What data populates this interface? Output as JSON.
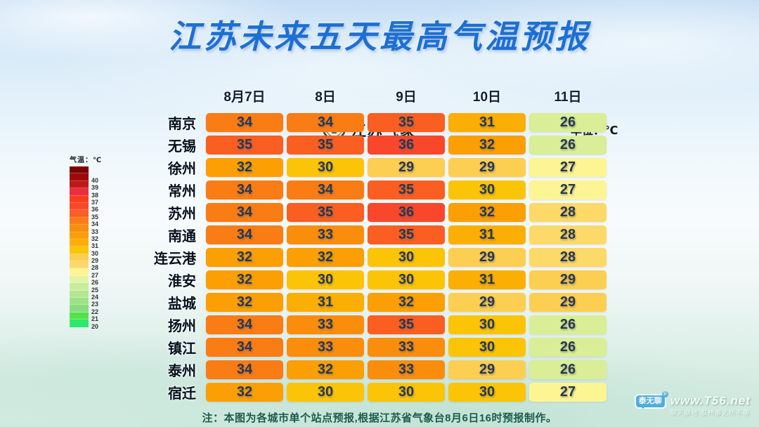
{
  "title": "江苏未来五天最高气温预报",
  "unit_label": "单位：℃",
  "logo": {
    "text": "江苏气象"
  },
  "legend": {
    "title": "气温：℃",
    "ticks": [
      40,
      39,
      38,
      37,
      36,
      35,
      34,
      33,
      32,
      31,
      30,
      29,
      28,
      27,
      26,
      25,
      24,
      23,
      22,
      21,
      20
    ],
    "colors": [
      "#7e0101",
      "#9e0a0a",
      "#bf1717",
      "#ec2d3a",
      "#fb3c16",
      "#f9472b",
      "#fa5e20",
      "#fa7c14",
      "#fa8d0c",
      "#fb9f04",
      "#fbae03",
      "#fcc407",
      "#fcce52",
      "#fcd968",
      "#fdf593",
      "#e3f3a6",
      "#c9ec9c",
      "#b3e793",
      "#9ce287",
      "#85de7b",
      "#52e348",
      "#2de96d"
    ]
  },
  "temp_colors": {
    "36": "#f9472b",
    "35": "#fa5e20",
    "34": "#fa7c14",
    "33": "#fa8d0c",
    "32": "#fb9f04",
    "31": "#fbae03",
    "30": "#fcc407",
    "29": "#fcce52",
    "28": "#fcd968",
    "27": "#fdf593",
    "26": "#d9ee96"
  },
  "table": {
    "date_headers": [
      "8月7日",
      "8日",
      "9日",
      "10日",
      "11日"
    ],
    "rows": [
      {
        "city": "南京",
        "temps": [
          34,
          34,
          35,
          31,
          26
        ]
      },
      {
        "city": "无锡",
        "temps": [
          35,
          35,
          36,
          32,
          26
        ]
      },
      {
        "city": "徐州",
        "temps": [
          32,
          30,
          29,
          29,
          27
        ]
      },
      {
        "city": "常州",
        "temps": [
          34,
          34,
          35,
          30,
          27
        ]
      },
      {
        "city": "苏州",
        "temps": [
          34,
          35,
          36,
          32,
          28
        ]
      },
      {
        "city": "南通",
        "temps": [
          34,
          33,
          35,
          31,
          28
        ]
      },
      {
        "city": "连云港",
        "temps": [
          32,
          32,
          30,
          29,
          28
        ]
      },
      {
        "city": "淮安",
        "temps": [
          32,
          30,
          30,
          31,
          29
        ]
      },
      {
        "city": "盐城",
        "temps": [
          32,
          31,
          32,
          29,
          29
        ]
      },
      {
        "city": "扬州",
        "temps": [
          34,
          33,
          35,
          30,
          26
        ]
      },
      {
        "city": "镇江",
        "temps": [
          34,
          33,
          33,
          30,
          26
        ]
      },
      {
        "city": "泰州",
        "temps": [
          34,
          32,
          33,
          29,
          26
        ]
      },
      {
        "city": "宿迁",
        "temps": [
          32,
          30,
          30,
          30,
          27
        ]
      }
    ]
  },
  "note": "注：本图为各城市单个站点预报,根据江苏省气象台8月6日16时预报制作。",
  "watermark": {
    "badge": "泰无聊",
    "reg_mark": "®",
    "site": "www.T56.net",
    "tagline": "聊天聊地 泰州事无所不聊"
  },
  "chart_data": {
    "type": "heatmap",
    "title": "江苏未来五天最高气温预报",
    "unit": "℃",
    "x": [
      "8月7日",
      "8日",
      "9日",
      "10日",
      "11日"
    ],
    "y": [
      "南京",
      "无锡",
      "徐州",
      "常州",
      "苏州",
      "南通",
      "连云港",
      "淮安",
      "盐城",
      "扬州",
      "镇江",
      "泰州",
      "宿迁"
    ],
    "values": [
      [
        34,
        34,
        35,
        31,
        26
      ],
      [
        35,
        35,
        36,
        32,
        26
      ],
      [
        32,
        30,
        29,
        29,
        27
      ],
      [
        34,
        34,
        35,
        30,
        27
      ],
      [
        34,
        35,
        36,
        32,
        28
      ],
      [
        34,
        33,
        35,
        31,
        28
      ],
      [
        32,
        32,
        30,
        29,
        28
      ],
      [
        32,
        30,
        30,
        31,
        29
      ],
      [
        32,
        31,
        32,
        29,
        29
      ],
      [
        34,
        33,
        35,
        30,
        26
      ],
      [
        34,
        33,
        33,
        30,
        26
      ],
      [
        34,
        32,
        33,
        29,
        26
      ],
      [
        32,
        30,
        30,
        30,
        27
      ]
    ],
    "colorbar_range": [
      20,
      40
    ],
    "legend_position": "left",
    "note": "注：本图为各城市单个站点预报,根据江苏省气象台8月6日16时预报制作。"
  }
}
